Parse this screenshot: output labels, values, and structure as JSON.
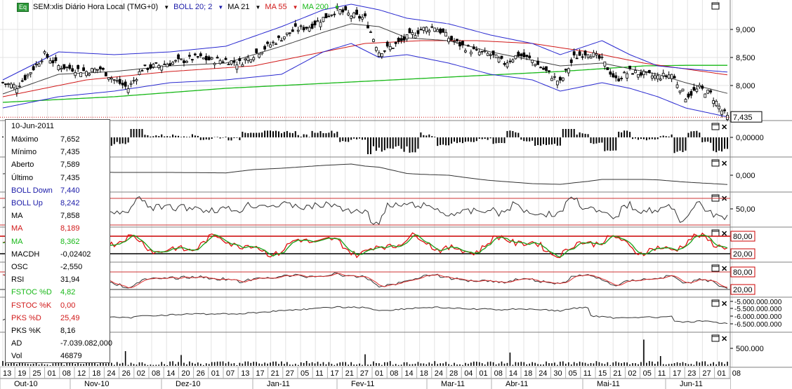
{
  "legend": {
    "symbol_badge": "Eq",
    "symbol_text": "SEM:xlis Diário Hora Local (TMG+0)",
    "items": [
      {
        "label": "BOLL 20; 2",
        "color": "#1a1aa8"
      },
      {
        "label": "MA 21",
        "color": "#000000"
      },
      {
        "label": "MA 55",
        "color": "#d11a1a"
      },
      {
        "label": "MA 200",
        "color": "#18b818"
      }
    ]
  },
  "info_box": {
    "date": "10-Jun-2011",
    "rows": [
      {
        "label": "Máximo",
        "value": "7,652",
        "color": "#000000"
      },
      {
        "label": "Mínimo",
        "value": "7,435",
        "color": "#000000"
      },
      {
        "label": "Aberto",
        "value": "7,589",
        "color": "#000000"
      },
      {
        "label": "Último",
        "value": "7,435",
        "color": "#000000"
      },
      {
        "label": "BOLL Down",
        "value": "7,440",
        "color": "#1a1aa8"
      },
      {
        "label": "BOLL Up",
        "value": "8,242",
        "color": "#1a1aa8"
      },
      {
        "label": "MA",
        "value": "7,858",
        "color": "#000000"
      },
      {
        "label": "MA",
        "value": "8,189",
        "color": "#d11a1a"
      },
      {
        "label": "MA",
        "value": "8,362",
        "color": "#18b818"
      },
      {
        "label": "MACDH",
        "value": "-0,02402",
        "color": "#000000"
      },
      {
        "label": "OSC",
        "value": "-2,550",
        "color": "#000000"
      },
      {
        "label": "RSI",
        "value": "31,94",
        "color": "#000000"
      },
      {
        "label": "FSTOC %D",
        "value": "4,82",
        "color": "#18b818"
      },
      {
        "label": "FSTOC %K",
        "value": "0,00",
        "color": "#d11a1a"
      },
      {
        "label": "PKS %D",
        "value": "25,49",
        "color": "#d11a1a"
      },
      {
        "label": "PKS %K",
        "value": "8,16",
        "color": "#000000"
      },
      {
        "label": "AD",
        "value": "-7.039.082,000",
        "color": "#000000"
      },
      {
        "label": "Vol",
        "value": "46879",
        "color": "#000000"
      }
    ]
  },
  "x_axis": {
    "day_labels": [
      "13",
      "19",
      "25",
      "01",
      "08",
      "12",
      "18",
      "24",
      "26",
      "02",
      "08",
      "14",
      "20",
      "26",
      "01",
      "07",
      "13",
      "17",
      "21",
      "27",
      "05",
      "11",
      "17",
      "21",
      "27",
      "01",
      "08",
      "14",
      "18",
      "24",
      "28",
      "04",
      "01",
      "08",
      "14",
      "18",
      "24",
      "30",
      "05",
      "11",
      "15",
      "21",
      "02",
      "05",
      "11",
      "17",
      "23",
      "27",
      "01",
      "08"
    ],
    "month_labels": [
      "Out-10",
      "Nov-10",
      "Dez-10",
      "Jan-11",
      "Fev-11",
      "Mar-11",
      "Abr-11",
      "Mai-11",
      "Jun-11"
    ]
  },
  "last_price_label": "7,435",
  "right_axis_labels": {
    "price": [
      "9,000",
      "8,500",
      "8,000"
    ],
    "macdh": [
      "0,00000"
    ],
    "osc": [
      "0,000"
    ],
    "rsi": [
      "50,00"
    ],
    "fstoc": [
      "80,00",
      "20,00"
    ],
    "pks": [
      "80,00",
      "20,00"
    ],
    "ad": [
      "-5.000.000.000",
      "-5.500.000.000",
      "-6.000.000.000",
      "-6.500.000.000"
    ],
    "volume": [
      "500.000"
    ]
  },
  "chart_data": {
    "type": "candlestick",
    "symbol": "SEM:xlis",
    "price_range": [
      7.4,
      9.45
    ],
    "last": 7.435,
    "close_anchors": [
      [
        0,
        8.05
      ],
      [
        5,
        7.98
      ],
      [
        10,
        8.25
      ],
      [
        15,
        8.55
      ],
      [
        20,
        8.35
      ],
      [
        25,
        8.3
      ],
      [
        30,
        8.25
      ],
      [
        35,
        8.3
      ],
      [
        40,
        8.1
      ],
      [
        45,
        7.95
      ],
      [
        50,
        8.3
      ],
      [
        55,
        8.35
      ],
      [
        60,
        8.4
      ],
      [
        65,
        8.45
      ],
      [
        70,
        8.5
      ],
      [
        75,
        8.45
      ],
      [
        80,
        8.45
      ],
      [
        85,
        8.4
      ],
      [
        90,
        8.55
      ],
      [
        95,
        8.7
      ],
      [
        100,
        8.85
      ],
      [
        105,
        9.0
      ],
      [
        110,
        9.05
      ],
      [
        115,
        9.2
      ],
      [
        120,
        9.35
      ],
      [
        125,
        9.25
      ],
      [
        130,
        9.2
      ],
      [
        135,
        8.6
      ],
      [
        140,
        8.7
      ],
      [
        145,
        8.85
      ],
      [
        150,
        9.0
      ],
      [
        155,
        9.05
      ],
      [
        160,
        8.85
      ],
      [
        165,
        8.7
      ],
      [
        170,
        8.6
      ],
      [
        175,
        8.55
      ],
      [
        180,
        8.4
      ],
      [
        185,
        8.55
      ],
      [
        190,
        8.45
      ],
      [
        195,
        8.25
      ],
      [
        200,
        8.05
      ],
      [
        205,
        8.5
      ],
      [
        210,
        8.6
      ],
      [
        215,
        8.45
      ],
      [
        220,
        8.1
      ],
      [
        225,
        8.25
      ],
      [
        230,
        8.2
      ],
      [
        235,
        8.15
      ],
      [
        240,
        8.2
      ],
      [
        245,
        7.8
      ],
      [
        250,
        7.95
      ],
      [
        254,
        7.85
      ],
      [
        258,
        7.55
      ],
      [
        260,
        7.435
      ]
    ],
    "bollinger_upper_anchors": [
      [
        0,
        8.1
      ],
      [
        20,
        8.6
      ],
      [
        40,
        8.55
      ],
      [
        60,
        8.6
      ],
      [
        80,
        8.7
      ],
      [
        100,
        9.05
      ],
      [
        115,
        9.35
      ],
      [
        125,
        9.45
      ],
      [
        135,
        9.35
      ],
      [
        145,
        9.2
      ],
      [
        160,
        9.1
      ],
      [
        175,
        8.9
      ],
      [
        190,
        8.75
      ],
      [
        200,
        8.55
      ],
      [
        215,
        8.8
      ],
      [
        225,
        8.55
      ],
      [
        235,
        8.35
      ],
      [
        245,
        8.3
      ],
      [
        260,
        8.24
      ]
    ],
    "bollinger_lower_anchors": [
      [
        0,
        7.6
      ],
      [
        20,
        7.8
      ],
      [
        40,
        7.9
      ],
      [
        60,
        8.05
      ],
      [
        80,
        8.1
      ],
      [
        100,
        8.2
      ],
      [
        115,
        8.6
      ],
      [
        125,
        8.75
      ],
      [
        135,
        8.5
      ],
      [
        145,
        8.55
      ],
      [
        160,
        8.4
      ],
      [
        175,
        8.2
      ],
      [
        190,
        8.1
      ],
      [
        200,
        7.9
      ],
      [
        215,
        8.05
      ],
      [
        225,
        7.95
      ],
      [
        235,
        7.8
      ],
      [
        245,
        7.6
      ],
      [
        260,
        7.44
      ]
    ],
    "ma21_anchors": [
      [
        0,
        7.85
      ],
      [
        20,
        8.2
      ],
      [
        40,
        8.25
      ],
      [
        60,
        8.35
      ],
      [
        80,
        8.4
      ],
      [
        100,
        8.7
      ],
      [
        115,
        8.95
      ],
      [
        125,
        9.1
      ],
      [
        135,
        9.05
      ],
      [
        145,
        8.85
      ],
      [
        160,
        8.8
      ],
      [
        175,
        8.6
      ],
      [
        190,
        8.45
      ],
      [
        200,
        8.35
      ],
      [
        215,
        8.4
      ],
      [
        225,
        8.3
      ],
      [
        235,
        8.2
      ],
      [
        245,
        8.05
      ],
      [
        260,
        7.86
      ]
    ],
    "ma55_anchors": [
      [
        0,
        7.8
      ],
      [
        30,
        8.1
      ],
      [
        60,
        8.25
      ],
      [
        90,
        8.35
      ],
      [
        110,
        8.55
      ],
      [
        130,
        8.75
      ],
      [
        150,
        8.8
      ],
      [
        170,
        8.8
      ],
      [
        190,
        8.75
      ],
      [
        210,
        8.6
      ],
      [
        230,
        8.4
      ],
      [
        260,
        8.19
      ]
    ],
    "ma200_anchors": [
      [
        0,
        7.7
      ],
      [
        40,
        7.8
      ],
      [
        80,
        7.95
      ],
      [
        120,
        8.05
      ],
      [
        160,
        8.15
      ],
      [
        200,
        8.25
      ],
      [
        230,
        8.35
      ],
      [
        245,
        8.36
      ],
      [
        260,
        8.36
      ]
    ],
    "indicators": {
      "macdh_last": -0.02402,
      "osc_last": -2.55,
      "rsi_last": 31.94,
      "fstoc_d_last": 4.82,
      "fstoc_k_last": 0.0,
      "pks_d_last": 25.49,
      "pks_k_last": 8.16,
      "ad_last": -7039082000,
      "ad_range": [
        -7000000000,
        -4800000000
      ],
      "volume_last": 46879,
      "volume_spikes": [
        [
          44,
          420000
        ],
        [
          64,
          310000
        ],
        [
          130,
          330000
        ],
        [
          182,
          380000
        ],
        [
          230,
          750000
        ],
        [
          236,
          280000
        ]
      ]
    },
    "date_range": [
      "13-Out-2010",
      "10-Jun-2011"
    ]
  }
}
